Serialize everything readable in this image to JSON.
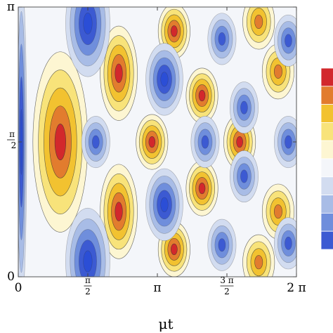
{
  "chart_data": {
    "type": "heatmap",
    "style": "filled contour plot",
    "title": "",
    "xlabel": "μt",
    "ylabel": "",
    "xlim": [
      0,
      6.2832
    ],
    "ylim": [
      0,
      3.1416
    ],
    "x_ticks": [
      {
        "value": 0,
        "label": "0"
      },
      {
        "value": 1.5708,
        "label": "π/2",
        "num": "π",
        "den": "2"
      },
      {
        "value": 3.1416,
        "label": "π"
      },
      {
        "value": 4.7124,
        "label": "3π/2",
        "num": "3 π",
        "den": "2"
      },
      {
        "value": 6.2832,
        "label": "2 π"
      }
    ],
    "y_ticks": [
      {
        "value": 0,
        "label": "0"
      },
      {
        "value": 1.5708,
        "label": "π/2",
        "num": "π",
        "den": "2"
      },
      {
        "value": 3.1416,
        "label": "π"
      }
    ],
    "contour_levels": [
      -0.8,
      -0.6,
      -0.4,
      -0.2,
      0,
      0.2,
      0.4,
      0.6,
      0.8
    ],
    "colorbar_colors_top_to_bottom": [
      "#d2282c",
      "#e27c2e",
      "#f2c230",
      "#f8e37a",
      "#fdf6d2",
      "#f4f6fa",
      "#d2dcf0",
      "#a8bce6",
      "#6f8edc",
      "#3c5ad2"
    ],
    "low_color": "#2b4ed6",
    "high_color": "#d2232a",
    "features": [
      {
        "kind": "max",
        "x": 0.95,
        "y": 1.57,
        "value": 1.0
      },
      {
        "kind": "max",
        "x": 2.27,
        "y": 2.37,
        "value": 0.95
      },
      {
        "kind": "max",
        "x": 2.27,
        "y": 0.76,
        "value": 0.95
      },
      {
        "kind": "max",
        "x": 3.02,
        "y": 1.57,
        "value": 0.9
      },
      {
        "kind": "max",
        "x": 3.52,
        "y": 2.86,
        "value": 0.9
      },
      {
        "kind": "max",
        "x": 3.52,
        "y": 0.32,
        "value": 0.9
      },
      {
        "kind": "max",
        "x": 4.15,
        "y": 2.11,
        "value": 0.9
      },
      {
        "kind": "max",
        "x": 4.15,
        "y": 1.03,
        "value": 0.9
      },
      {
        "kind": "max",
        "x": 5.0,
        "y": 1.57,
        "value": 0.9
      },
      {
        "kind": "max",
        "x": 5.43,
        "y": 2.97,
        "value": 0.85
      },
      {
        "kind": "max",
        "x": 5.43,
        "y": 0.17,
        "value": 0.85
      },
      {
        "kind": "max",
        "x": 5.87,
        "y": 2.39,
        "value": 0.85
      },
      {
        "kind": "max",
        "x": 5.87,
        "y": 0.76,
        "value": 0.85
      },
      {
        "kind": "min",
        "x": 0.07,
        "y": 1.57,
        "value": -1.0,
        "stripe": true
      },
      {
        "kind": "min",
        "x": 1.57,
        "y": 2.95,
        "value": -1.0
      },
      {
        "kind": "min",
        "x": 1.57,
        "y": 0.18,
        "value": -1.0
      },
      {
        "kind": "min",
        "x": 1.75,
        "y": 1.57,
        "value": -0.85
      },
      {
        "kind": "min",
        "x": 3.3,
        "y": 2.3,
        "value": -1.0
      },
      {
        "kind": "min",
        "x": 3.3,
        "y": 0.84,
        "value": -1.0
      },
      {
        "kind": "min",
        "x": 4.6,
        "y": 2.77,
        "value": -0.85
      },
      {
        "kind": "min",
        "x": 4.6,
        "y": 0.37,
        "value": -0.85
      },
      {
        "kind": "min",
        "x": 4.22,
        "y": 1.57,
        "value": -0.85
      },
      {
        "kind": "min",
        "x": 5.1,
        "y": 1.97,
        "value": -0.85
      },
      {
        "kind": "min",
        "x": 5.1,
        "y": 1.17,
        "value": -0.85
      },
      {
        "kind": "min",
        "x": 6.1,
        "y": 1.57,
        "value": -0.85
      },
      {
        "kind": "min",
        "x": 6.1,
        "y": 2.75,
        "value": -0.8
      },
      {
        "kind": "min",
        "x": 6.1,
        "y": 0.39,
        "value": -0.8
      }
    ]
  }
}
